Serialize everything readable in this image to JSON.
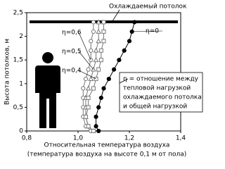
{
  "chart_data": {
    "type": "line",
    "annotation_top": "Охлаждаемый потолок",
    "ylabel": "Высота потолков, м",
    "xlabel": [
      "Относительная температура воздуха",
      "(температура воздуха на высоте 0,1 м от пола)"
    ],
    "note_lines": [
      "η = отношение между",
      "тепловой нагрузкой",
      "охлаждаемого потолка",
      "и общей нагрузкой"
    ],
    "xlim": [
      0.8,
      1.4
    ],
    "xticks": [
      {
        "value": 0.8,
        "label": "0,8"
      },
      {
        "value": 1.0,
        "label": "1,0"
      },
      {
        "value": 1.2,
        "label": "1,2"
      },
      {
        "value": 1.4,
        "label": "1,4"
      }
    ],
    "ylim": [
      0,
      2.5
    ],
    "yticks": [
      0,
      {
        "value": 0.5,
        "label": "0,5"
      },
      1,
      {
        "value": 1.5,
        "label": "1,5"
      },
      2,
      {
        "value": 2.5,
        "label": "2,5"
      }
    ],
    "series": [
      {
        "name": "η=0,6",
        "color": "#777777",
        "marker": "circle",
        "x": [
          1.05,
          1.03,
          1.02,
          1.02,
          1.02,
          1.02,
          1.03,
          1.04,
          1.05,
          1.05,
          1.05,
          1.06,
          1.06
        ],
        "values": [
          0,
          0.1,
          0.3,
          0.5,
          0.7,
          0.9,
          1.1,
          1.3,
          1.5,
          1.7,
          1.9,
          2.1,
          2.3
        ]
      },
      {
        "name": "η=0,5",
        "color": "#777777",
        "marker": "triangle",
        "x": [
          1.06,
          1.04,
          1.03,
          1.03,
          1.03,
          1.04,
          1.05,
          1.06,
          1.07,
          1.07,
          1.08,
          1.08,
          1.08
        ],
        "values": [
          0,
          0.1,
          0.3,
          0.5,
          0.7,
          0.9,
          1.1,
          1.3,
          1.5,
          1.7,
          1.9,
          2.1,
          2.3
        ]
      },
      {
        "name": "η=0,4",
        "color": "#777777",
        "marker": "square",
        "x": [
          1.06,
          1.04,
          1.03,
          1.04,
          1.04,
          1.06,
          1.07,
          1.08,
          1.09,
          1.09,
          1.1,
          1.1,
          1.1
        ],
        "values": [
          0,
          0.1,
          0.3,
          0.5,
          0.7,
          0.9,
          1.1,
          1.3,
          1.5,
          1.7,
          1.9,
          2.1,
          2.3
        ]
      },
      {
        "name": "η=0",
        "color": "#000000",
        "marker": "filled-circle",
        "x": [
          1.08,
          1.07,
          1.07,
          1.08,
          1.09,
          1.1,
          1.12,
          1.14,
          1.16,
          1.18,
          1.2,
          1.21,
          1.22
        ],
        "values": [
          0,
          0.1,
          0.3,
          0.5,
          0.7,
          0.9,
          1.1,
          1.3,
          1.5,
          1.7,
          1.9,
          2.1,
          2.3
        ]
      }
    ]
  }
}
